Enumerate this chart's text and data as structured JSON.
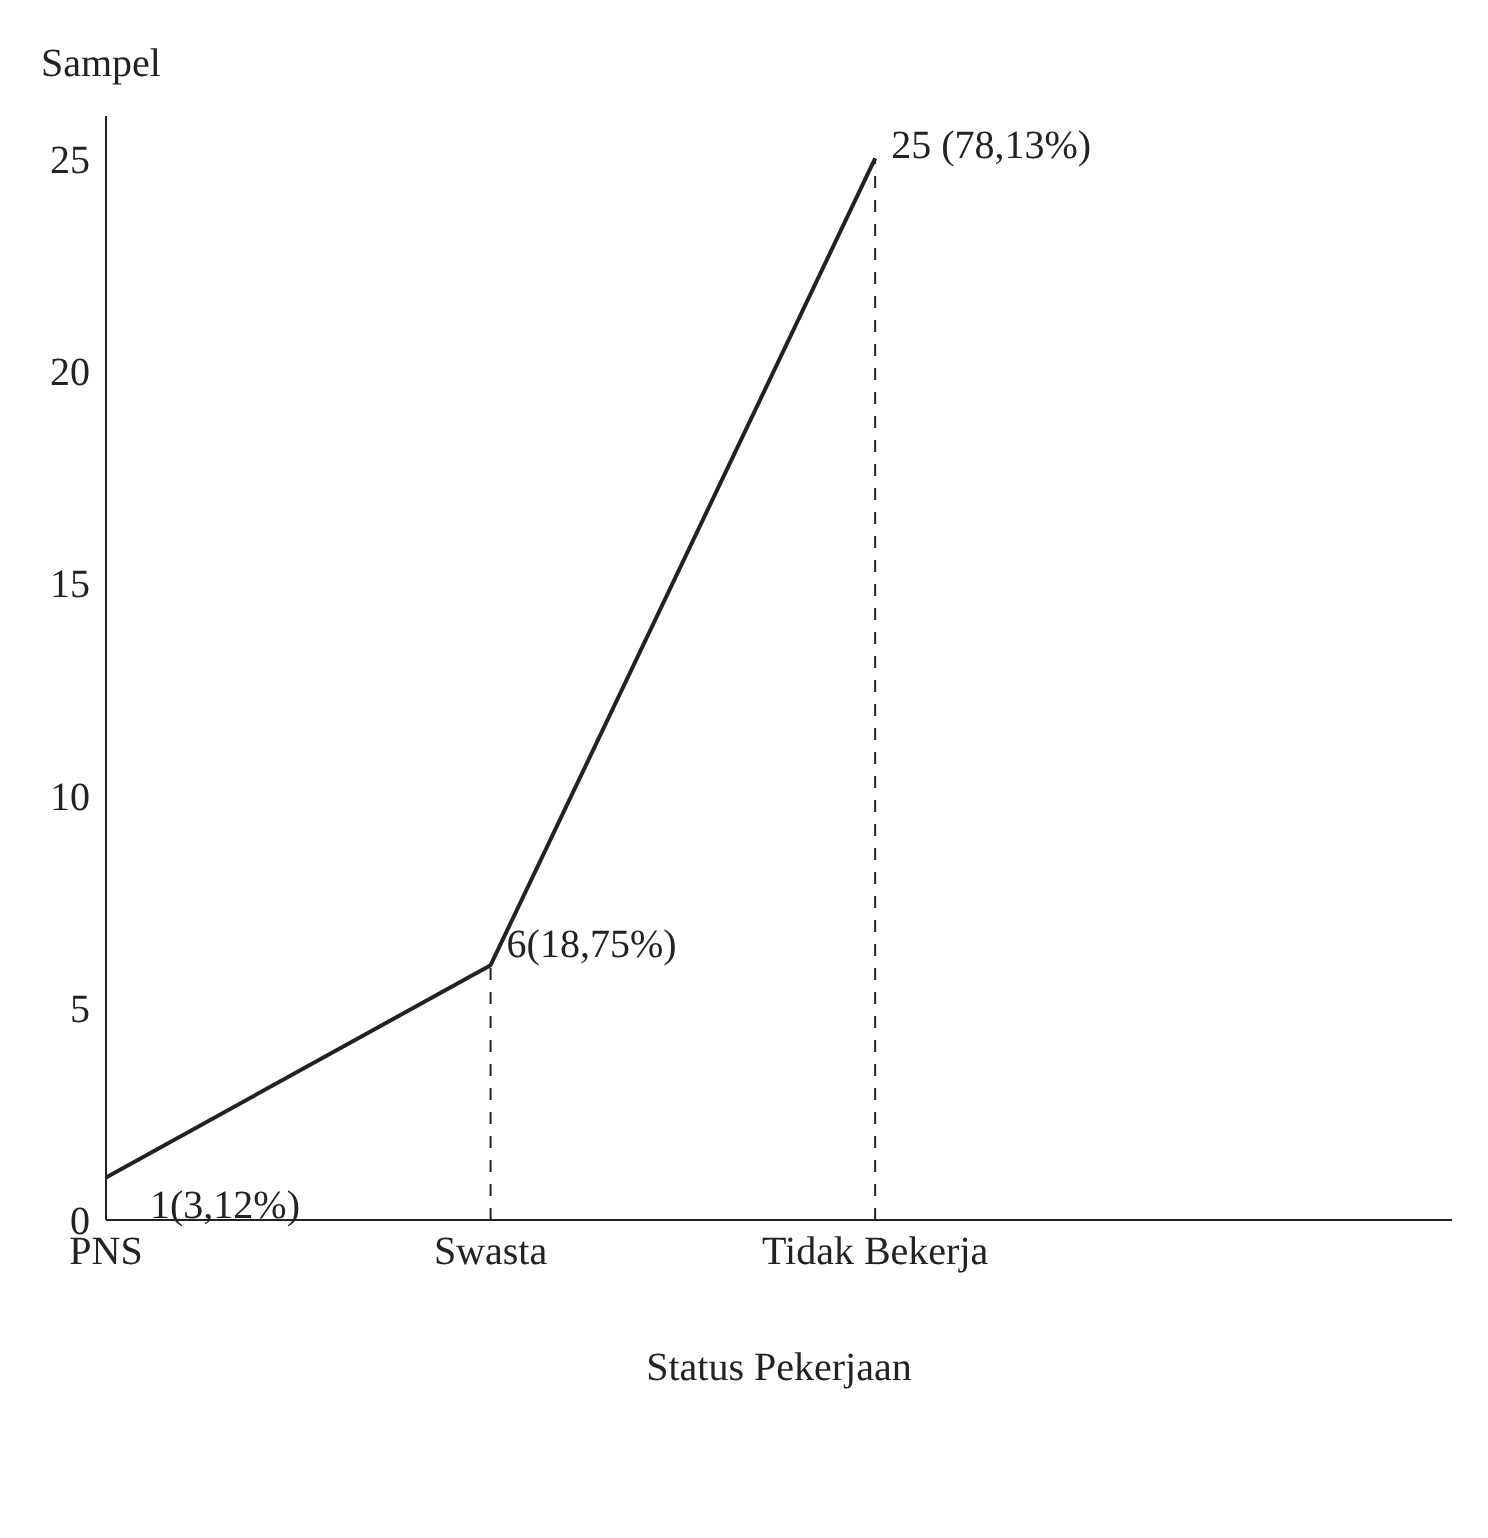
{
  "chart_data": {
    "type": "line",
    "xlabel": "Status Pekerjaan",
    "ylabel": "Sampel",
    "categories": [
      "PNS",
      "Swasta",
      "Tidak Bekerja"
    ],
    "series": [
      {
        "color": "#222222",
        "values": [
          1,
          6,
          25
        ],
        "value_labels": [
          "1(3,12%)",
          "6(18,75%)",
          "25 (78,13%)"
        ]
      }
    ],
    "ylim": [
      0,
      26
    ],
    "yticks": [
      0,
      5,
      10,
      15,
      20,
      25
    ],
    "grid": false,
    "legend": false,
    "marker": "none",
    "line_style": "solid",
    "ref_lines": [
      {
        "axis": "x",
        "value": "Swasta",
        "color": "#222222",
        "line_style": "dashed"
      },
      {
        "axis": "x",
        "value": "Tidak Bekerja",
        "color": "#222222",
        "line_style": "dashed"
      }
    ]
  }
}
